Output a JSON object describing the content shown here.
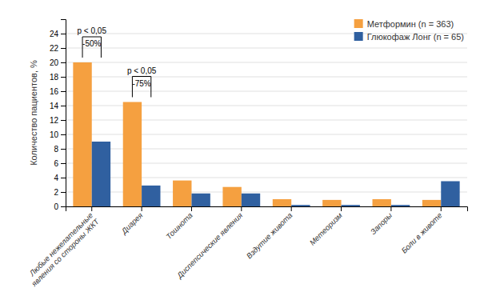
{
  "chart_data": {
    "type": "bar",
    "categories": [
      "Любые нежелательные\nявления со стороны ЖКТ",
      "Диарея",
      "Тошнота",
      "Диспепсические явления",
      "Вздутие живота",
      "Метеоризм",
      "Запоры",
      "Боли в животе"
    ],
    "series": [
      {
        "name": "Метформин (n = 363)",
        "color": "#F5A040",
        "values": [
          20.0,
          14.5,
          3.6,
          2.7,
          1.0,
          0.9,
          1.0,
          0.9
        ]
      },
      {
        "name": "Глюкофаж Лонг (n = 65)",
        "color": "#3060A0",
        "values": [
          9.0,
          2.9,
          1.8,
          1.8,
          0.2,
          0.2,
          0.2,
          3.5
        ]
      }
    ],
    "ylabel": "Количество пациентов, %",
    "ylim": [
      0,
      26
    ],
    "yticks": [
      0,
      2,
      4,
      6,
      8,
      10,
      12,
      14,
      16,
      18,
      20,
      22,
      24
    ],
    "grid": true,
    "legend": "upper right",
    "annotations": [
      {
        "text": "p < 0,05",
        "label": "-50%"
      },
      {
        "text": "p < 0,05",
        "label": "-75%"
      }
    ]
  }
}
